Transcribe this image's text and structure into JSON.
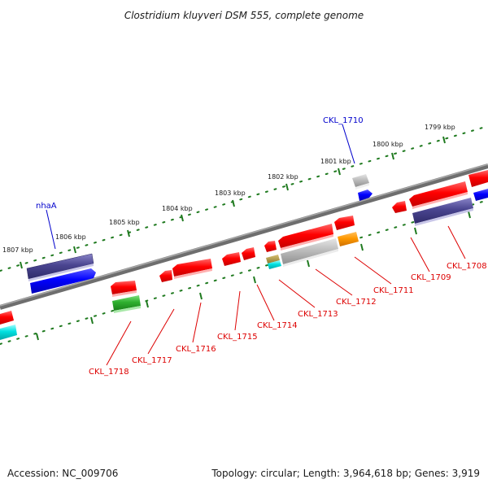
{
  "title": "Clostridium kluyveri DSM 555, complete genome",
  "footer": {
    "accession": "Accession: NC_009706",
    "summary": "Topology: circular; Length: 3,964,618 bp; Genes: 3,919"
  },
  "kbp_labels": [
    "1807 kbp",
    "1806 kbp",
    "1805 kbp",
    "1804 kbp",
    "1803 kbp",
    "1802 kbp",
    "1801 kbp",
    "1800 kbp",
    "1799 kbp"
  ],
  "gene_labels": {
    "nhaA": "nhaA",
    "CKL_1710": "CKL_1710",
    "CKL_1708": "CKL_1708",
    "CKL_1709": "CKL_1709",
    "CKL_1711": "CKL_1711",
    "CKL_1712": "CKL_1712",
    "CKL_1713": "CKL_1713",
    "CKL_1714": "CKL_1714",
    "CKL_1715": "CKL_1715",
    "CKL_1716": "CKL_1716",
    "CKL_1717": "CKL_1717",
    "CKL_1718": "CKL_1718"
  },
  "colors": {
    "backbone": "#777777",
    "tick": "#1f7a1f",
    "forward_label": "#0000cc",
    "reverse_label": "#dd0000"
  }
}
